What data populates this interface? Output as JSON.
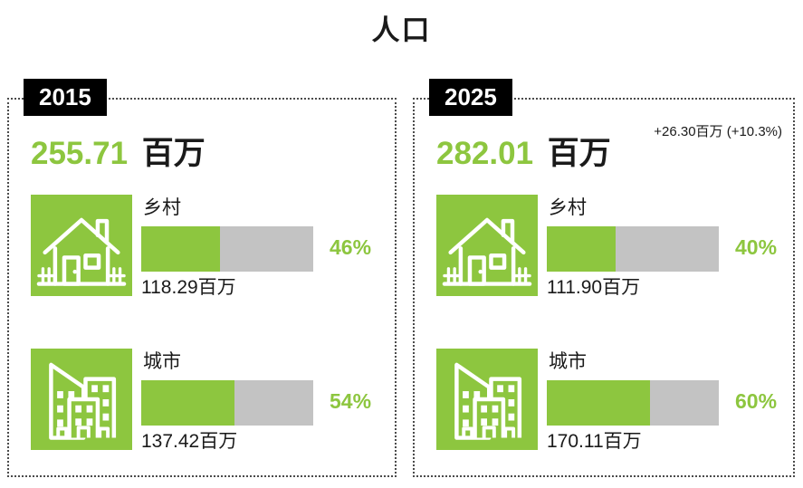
{
  "title": "人口",
  "colors": {
    "green": "#8DC63F",
    "bar_gray": "#C3C3C3",
    "badge_bg": "#000000",
    "badge_text": "#FFFFFF",
    "text_black": "#1A1A1A"
  },
  "panels": [
    {
      "year": "2015",
      "total": "255.71",
      "unit": "百万",
      "rows": [
        {
          "icon": "house-icon",
          "label": "乡村",
          "percent": 46,
          "percent_label": "46%",
          "value": "118.29百万"
        },
        {
          "icon": "buildings-icon",
          "label": "城市",
          "percent": 54,
          "percent_label": "54%",
          "value": "137.42百万"
        }
      ]
    },
    {
      "year": "2025",
      "total": "282.01",
      "unit": "百万",
      "growth_note": "+26.30百万 (+10.3%)",
      "rows": [
        {
          "icon": "house-icon",
          "label": "乡村",
          "percent": 40,
          "percent_label": "40%",
          "value": "111.90百万"
        },
        {
          "icon": "buildings-icon",
          "label": "城市",
          "percent": 60,
          "percent_label": "60%",
          "value": "170.11百万"
        }
      ]
    }
  ],
  "chart_data": {
    "type": "bar",
    "title": "人口",
    "unit": "百万",
    "categories": [
      "乡村",
      "城市"
    ],
    "series": [
      {
        "name": "2015",
        "total": 255.71,
        "values": [
          118.29,
          137.42
        ],
        "percents": [
          46,
          54
        ]
      },
      {
        "name": "2025",
        "total": 282.01,
        "values": [
          111.9,
          170.11
        ],
        "percents": [
          40,
          60
        ]
      }
    ],
    "change_label": "+26.30百万 (+10.3%)",
    "change_absolute": 26.3,
    "change_percent": 10.3,
    "layout": "two side-by-side dotted panels, horizontal percent bars, grid off, no axes"
  }
}
